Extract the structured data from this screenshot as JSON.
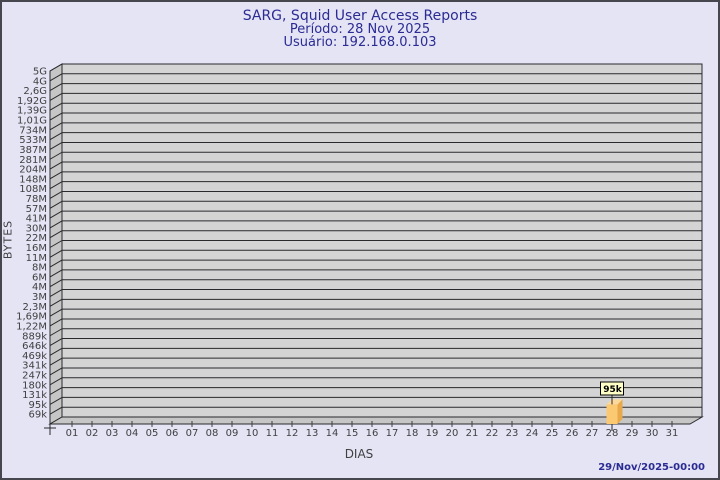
{
  "header": {
    "title": "SARG, Squid User Access Reports",
    "period": "Período: 28 Nov 2025",
    "user": "Usuário: 192.168.0.103"
  },
  "footer": {
    "generated": "29/Nov/2025-00:00"
  },
  "colors": {
    "background": "#e4e4f5",
    "outer_border": "#46464e",
    "panel": "#d4d4d4",
    "wall": "#c6c6c6",
    "grid": "#2a2a2e",
    "tick_text": "#404040",
    "title_text": "#2b2b94",
    "bar_face": "#fbc972",
    "bar_side": "#e8a94a",
    "bar_top": "#fcd99a",
    "flag_bg": "#ffffc6",
    "flag_border": "#000000",
    "flag_text": "#000000"
  },
  "chart_data": {
    "type": "bar",
    "title": "SARG, Squid User Access Reports",
    "subtitle": [
      "Período: 28 Nov 2025",
      "Usuário: 192.168.0.103"
    ],
    "xlabel": "DIAS",
    "ylabel": "BYTES",
    "scale": "logarithmic",
    "grid": "horizontal-only",
    "legend": "none",
    "ylim": [
      "69k",
      "5G"
    ],
    "categories": [
      "01",
      "02",
      "03",
      "04",
      "05",
      "06",
      "07",
      "08",
      "09",
      "10",
      "11",
      "12",
      "13",
      "14",
      "15",
      "16",
      "17",
      "18",
      "19",
      "20",
      "21",
      "22",
      "23",
      "24",
      "25",
      "26",
      "27",
      "28",
      "29",
      "30",
      "31"
    ],
    "values": [
      0,
      0,
      0,
      0,
      0,
      0,
      0,
      0,
      0,
      0,
      0,
      0,
      0,
      0,
      0,
      0,
      0,
      0,
      0,
      0,
      0,
      0,
      0,
      0,
      0,
      0,
      0,
      95000,
      0,
      0,
      0
    ],
    "annotations": [
      {
        "category": "28",
        "label": "95k"
      }
    ],
    "y_tick_labels": [
      "5G",
      "4G",
      "2,6G",
      "1,92G",
      "1,39G",
      "1,01G",
      "734M",
      "533M",
      "387M",
      "281M",
      "204M",
      "148M",
      "108M",
      "78M",
      "57M",
      "41M",
      "30M",
      "22M",
      "16M",
      "11M",
      "8M",
      "6M",
      "4M",
      "3M",
      "2,3M",
      "1,69M",
      "1,22M",
      "889k",
      "646k",
      "469k",
      "341k",
      "247k",
      "180k",
      "131k",
      "95k",
      "69k"
    ]
  }
}
